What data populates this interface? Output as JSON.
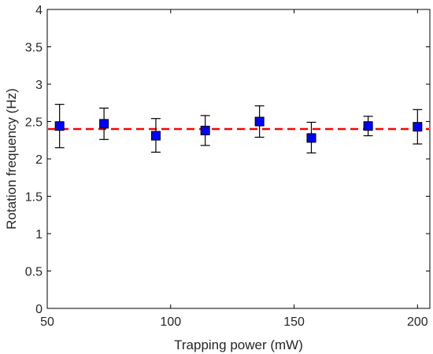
{
  "chart_data": {
    "type": "scatter",
    "title": "",
    "xlabel": "Trapping power (mW)",
    "ylabel": "Rotation frequency (Hz)",
    "xlim": [
      50,
      205
    ],
    "ylim": [
      0,
      4
    ],
    "xticks": [
      50,
      100,
      150,
      200
    ],
    "xtick_labels": [
      "50",
      "100",
      "150",
      "200"
    ],
    "yticks": [
      0,
      0.5,
      1,
      1.5,
      2,
      2.5,
      3,
      3.5,
      4
    ],
    "ytick_labels": [
      "0",
      "0.5",
      "1",
      "1.5",
      "2",
      "2.5",
      "3",
      "3.5",
      "4"
    ],
    "grid": false,
    "series": [
      {
        "marker": "square",
        "color": "#0000ff",
        "points": [
          {
            "x": 55,
            "y": 2.44,
            "err_low": 0.29,
            "err_high": 0.29
          },
          {
            "x": 73,
            "y": 2.47,
            "err_low": 0.21,
            "err_high": 0.21
          },
          {
            "x": 94,
            "y": 2.31,
            "err_low": 0.22,
            "err_high": 0.23
          },
          {
            "x": 114,
            "y": 2.38,
            "err_low": 0.2,
            "err_high": 0.2
          },
          {
            "x": 136,
            "y": 2.5,
            "err_low": 0.21,
            "err_high": 0.21
          },
          {
            "x": 157,
            "y": 2.28,
            "err_low": 0.2,
            "err_high": 0.21
          },
          {
            "x": 180,
            "y": 2.44,
            "err_low": 0.13,
            "err_high": 0.13
          },
          {
            "x": 200,
            "y": 2.43,
            "err_low": 0.23,
            "err_high": 0.23
          }
        ]
      }
    ],
    "reference_line": {
      "y": 2.4,
      "style": "dashed",
      "color": "#ff0000"
    }
  }
}
